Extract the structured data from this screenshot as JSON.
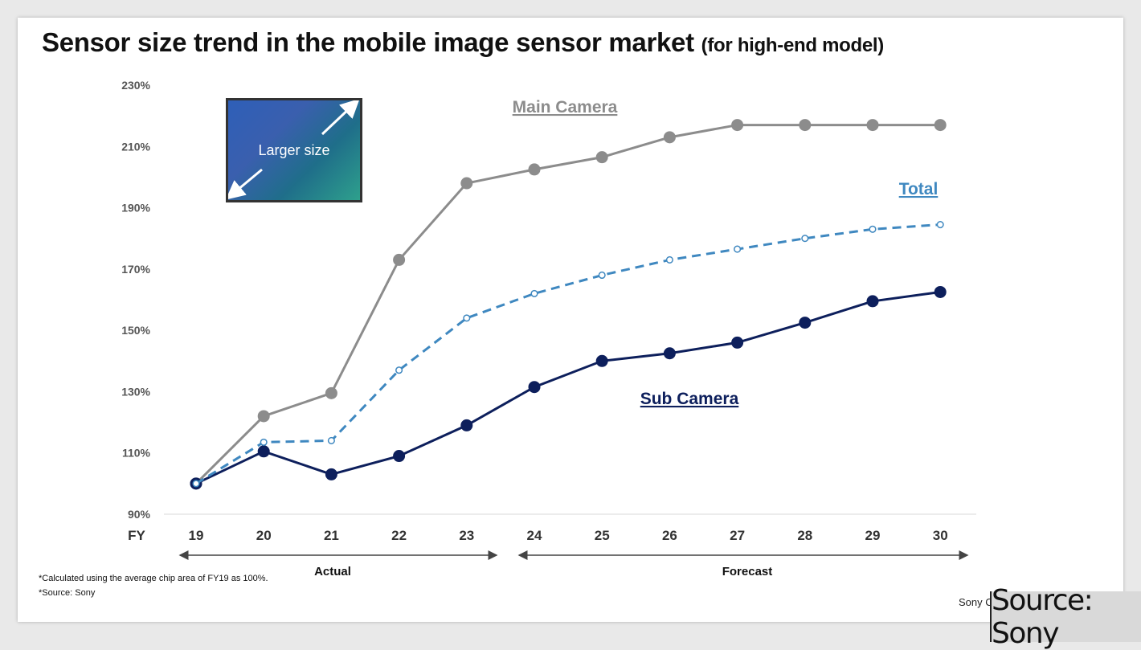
{
  "header": {
    "title": "Sensor size trend in the mobile image sensor market",
    "subtitle": "(for high-end model)"
  },
  "inset": {
    "label": "Larger size"
  },
  "chart_data": {
    "type": "line",
    "x_axis_title": "FY",
    "categories": [
      "19",
      "20",
      "21",
      "22",
      "23",
      "24",
      "25",
      "26",
      "27",
      "28",
      "29",
      "30"
    ],
    "ylim": [
      90,
      230
    ],
    "y_ticks": [
      "90%",
      "110%",
      "130%",
      "150%",
      "170%",
      "190%",
      "210%",
      "230%"
    ],
    "grid": false,
    "series": [
      {
        "name": "Main Camera",
        "color": "#8c8c8c",
        "style": "solid",
        "marker": "filled",
        "values": [
          100,
          122,
          129.5,
          173,
          198,
          202.5,
          206.5,
          213,
          217,
          217,
          217,
          217
        ]
      },
      {
        "name": "Total",
        "color": "#3f88c0",
        "style": "dashed",
        "marker": "open",
        "values": [
          100,
          113.5,
          114,
          137,
          154,
          162,
          168,
          173,
          176.5,
          180,
          183,
          184.5
        ]
      },
      {
        "name": "Sub Camera",
        "color": "#0d1f5c",
        "style": "solid",
        "marker": "filled",
        "values": [
          100,
          110.5,
          103,
          109,
          119,
          131.5,
          140,
          142.5,
          146,
          152.5,
          159.5,
          162.5
        ]
      }
    ],
    "periods": [
      {
        "label": "Actual",
        "from": "19",
        "to": "23"
      },
      {
        "label": "Forecast",
        "from": "24",
        "to": "30"
      }
    ]
  },
  "notes": [
    "*Calculated using the average chip area of FY19 as 100%.",
    "*Source: Sony"
  ],
  "corner_text": "Sony C",
  "source_badge": "Source: Sony"
}
